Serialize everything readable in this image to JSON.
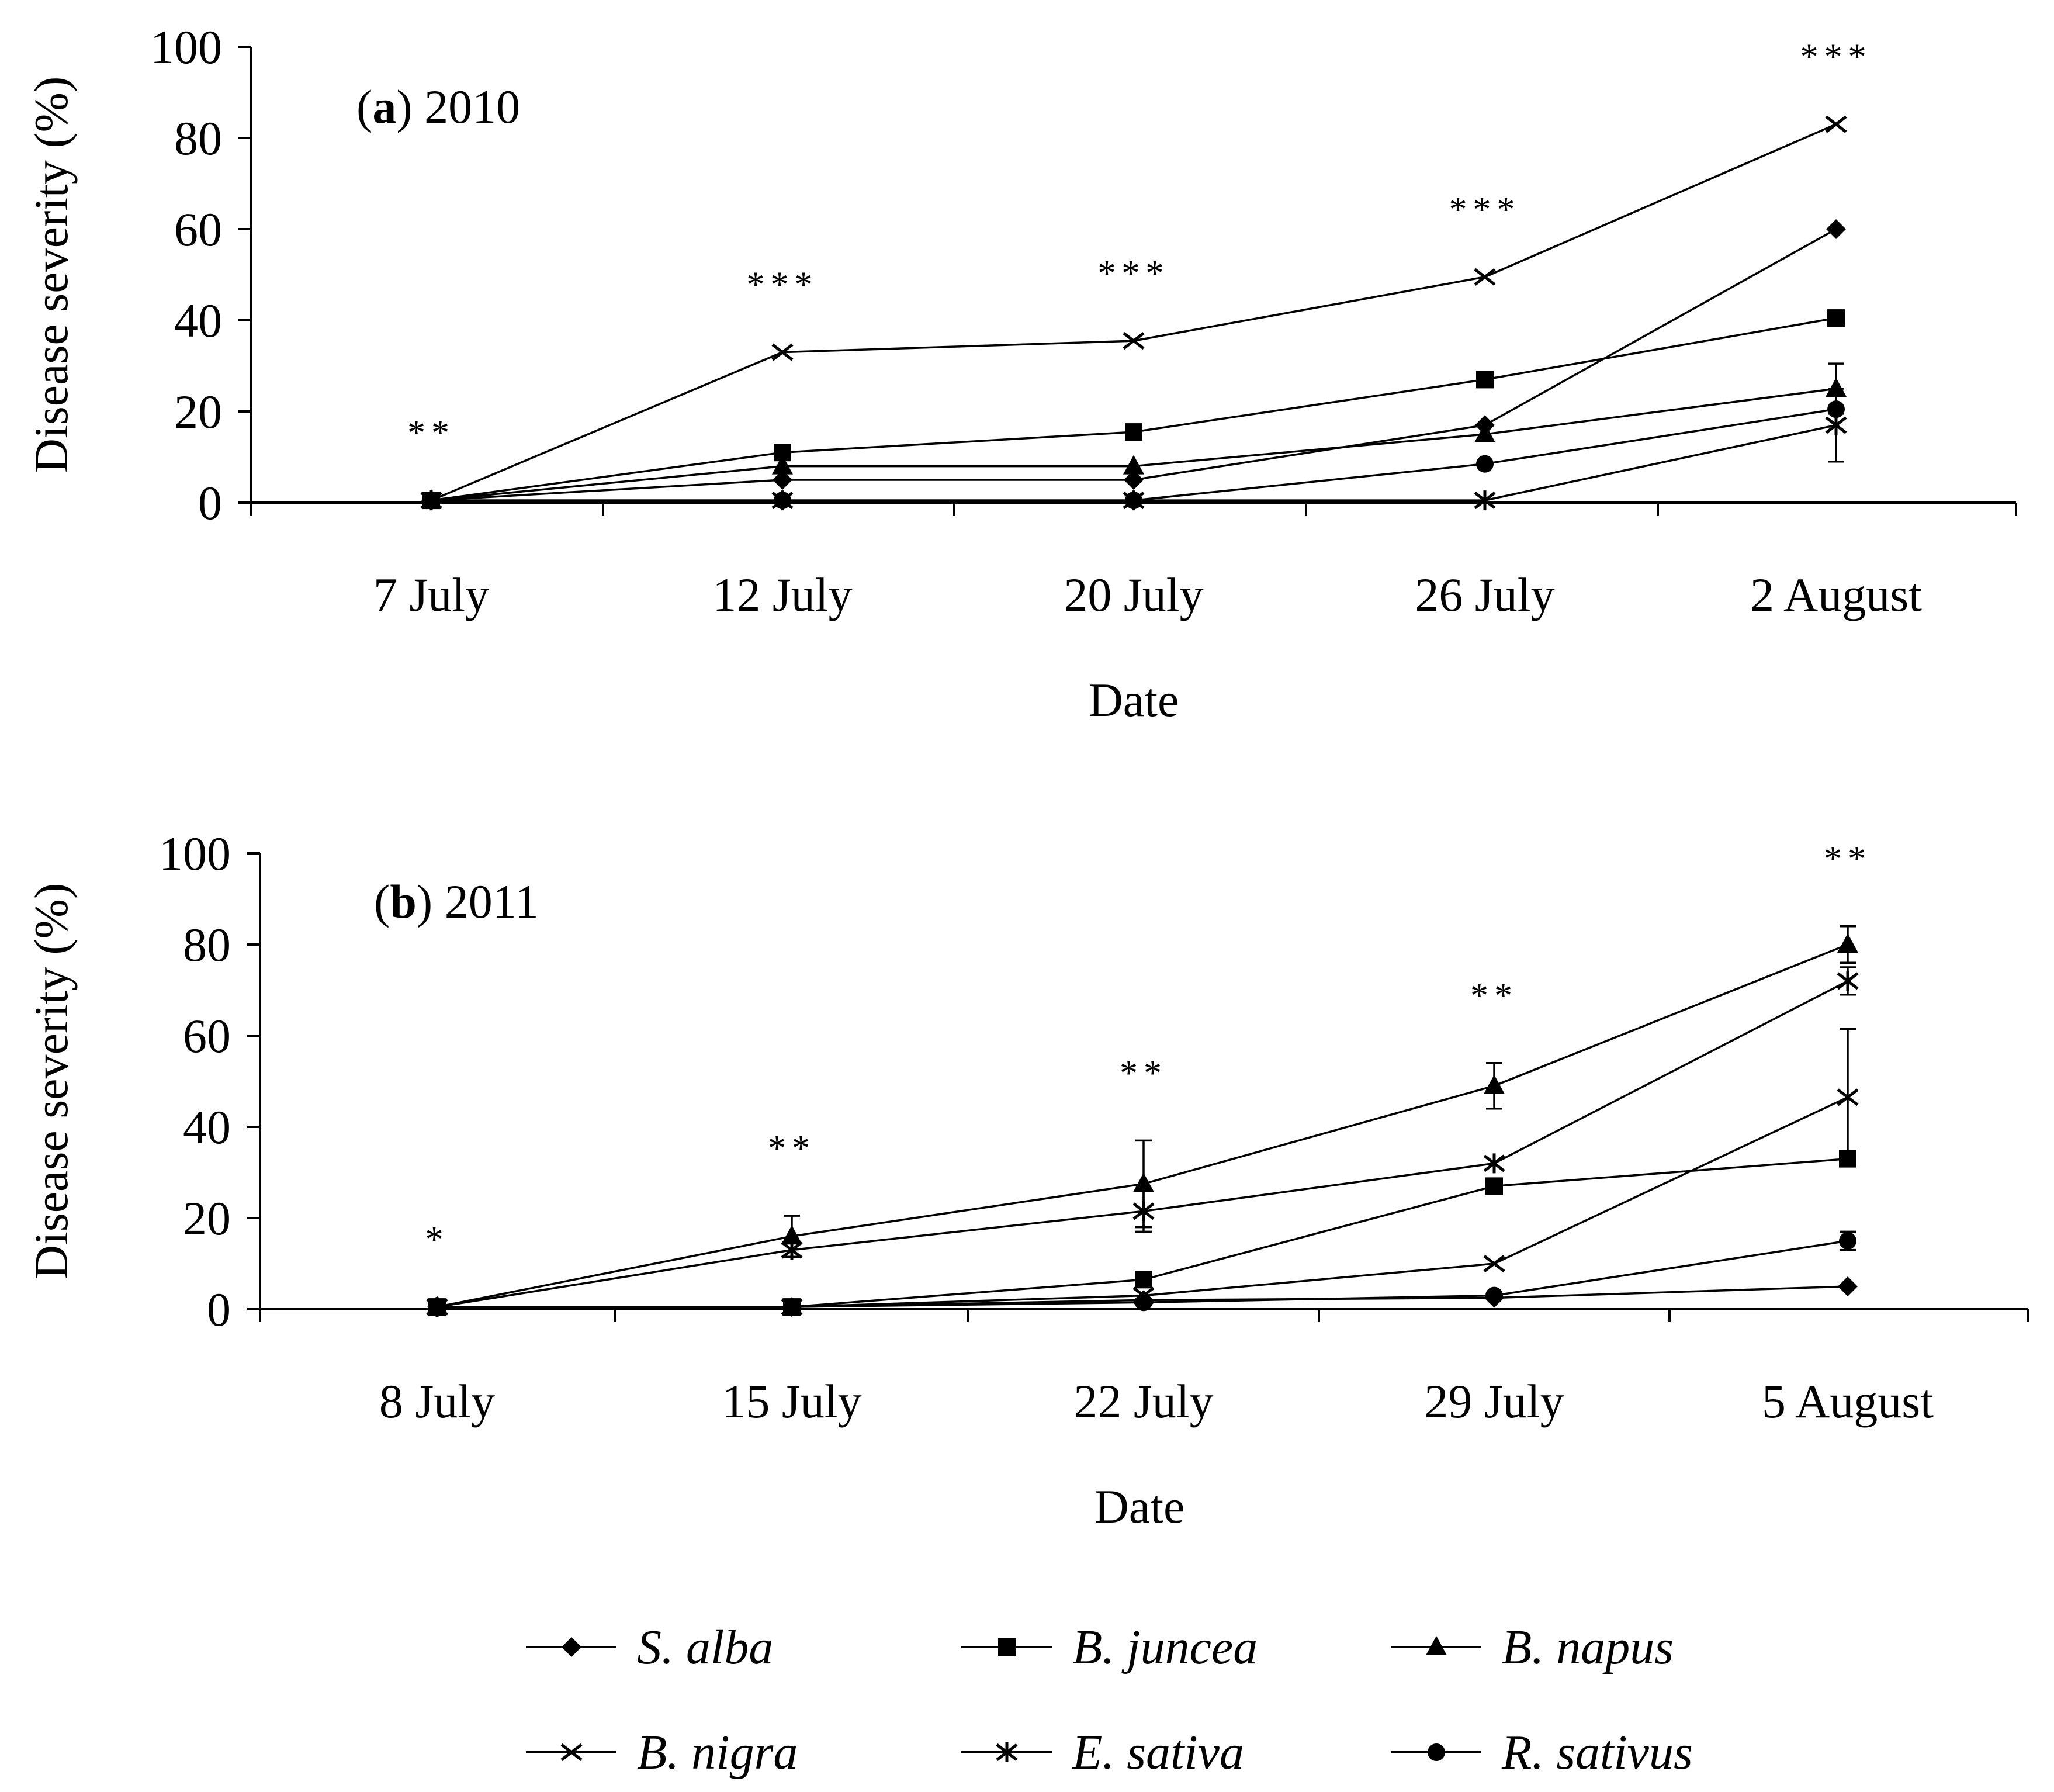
{
  "chart_data": [
    {
      "type": "line",
      "panel": "a",
      "year": "2010",
      "xlabel": "Date",
      "ylabel": "Disease  severity  (%)",
      "ylim": [
        0,
        100
      ],
      "yticks": [
        "0",
        "20",
        "40",
        "60",
        "80",
        "100"
      ],
      "categories": [
        "7 July",
        "12 July",
        "20 July",
        "26 July",
        "2 August"
      ],
      "significance": [
        "**",
        "***",
        "***",
        "***",
        "***"
      ],
      "series": [
        {
          "name": "S. alba",
          "marker": "diamond",
          "values": [
            0.5,
            5,
            5,
            17,
            60
          ]
        },
        {
          "name": "B. juncea",
          "marker": "square",
          "values": [
            0.5,
            11,
            15.5,
            27,
            40.5
          ]
        },
        {
          "name": "B. napus",
          "marker": "triangle",
          "values": [
            0.5,
            8,
            8,
            15,
            25
          ],
          "err": [
            0,
            0,
            0,
            0,
            5.5
          ]
        },
        {
          "name": "B. nigra",
          "marker": "x",
          "values": [
            0.5,
            33,
            35.5,
            49.5,
            83
          ]
        },
        {
          "name": "E. sativa",
          "marker": "asterisk",
          "values": [
            0.5,
            0.5,
            0.5,
            0.5,
            17
          ],
          "err": [
            0,
            0,
            0,
            0,
            8
          ]
        },
        {
          "name": "R. sativus",
          "marker": "circle",
          "values": [
            0.5,
            0.5,
            0.5,
            8.5,
            20.5
          ]
        }
      ]
    },
    {
      "type": "line",
      "panel": "b",
      "year": "2011",
      "xlabel": "Date",
      "ylabel": "Disease  severity  (%)",
      "ylim": [
        0,
        100
      ],
      "yticks": [
        "0",
        "20",
        "40",
        "60",
        "80",
        "100"
      ],
      "categories": [
        "8 July",
        "15 July",
        "22 July",
        "29 July",
        "5 August"
      ],
      "significance": [
        "*",
        "**",
        "**",
        "**",
        "**"
      ],
      "series": [
        {
          "name": "S. alba",
          "marker": "diamond",
          "values": [
            0.5,
            0.5,
            2,
            2.5,
            5
          ]
        },
        {
          "name": "B. juncea",
          "marker": "square",
          "values": [
            0.5,
            0.5,
            6.5,
            27,
            33
          ]
        },
        {
          "name": "B. napus",
          "marker": "triangle",
          "values": [
            0.5,
            16,
            27.5,
            49,
            80
          ],
          "err": [
            0,
            4.5,
            9.5,
            5,
            4
          ]
        },
        {
          "name": "B. nigra",
          "marker": "x",
          "values": [
            0.5,
            0.5,
            3,
            10,
            46.5
          ],
          "err": [
            0,
            0,
            0,
            0,
            15
          ]
        },
        {
          "name": "E. sativa",
          "marker": "asterisk",
          "values": [
            0.5,
            13,
            21.5,
            32,
            72
          ],
          "err": [
            0,
            0,
            4.5,
            0,
            3
          ]
        },
        {
          "name": "R. sativus",
          "marker": "circle",
          "values": [
            0.5,
            0.5,
            1.5,
            3,
            15
          ],
          "err": [
            0,
            0,
            0,
            0,
            2
          ]
        }
      ]
    }
  ],
  "legend": [
    {
      "name": "S. alba",
      "marker": "diamond"
    },
    {
      "name": "B. juncea",
      "marker": "square"
    },
    {
      "name": "B. napus",
      "marker": "triangle"
    },
    {
      "name": "B. nigra",
      "marker": "x"
    },
    {
      "name": "E. sativa",
      "marker": "asterisk"
    },
    {
      "name": "R. sativus",
      "marker": "circle"
    }
  ],
  "colors": {
    "ink": "#000000",
    "background": "#ffffff"
  }
}
